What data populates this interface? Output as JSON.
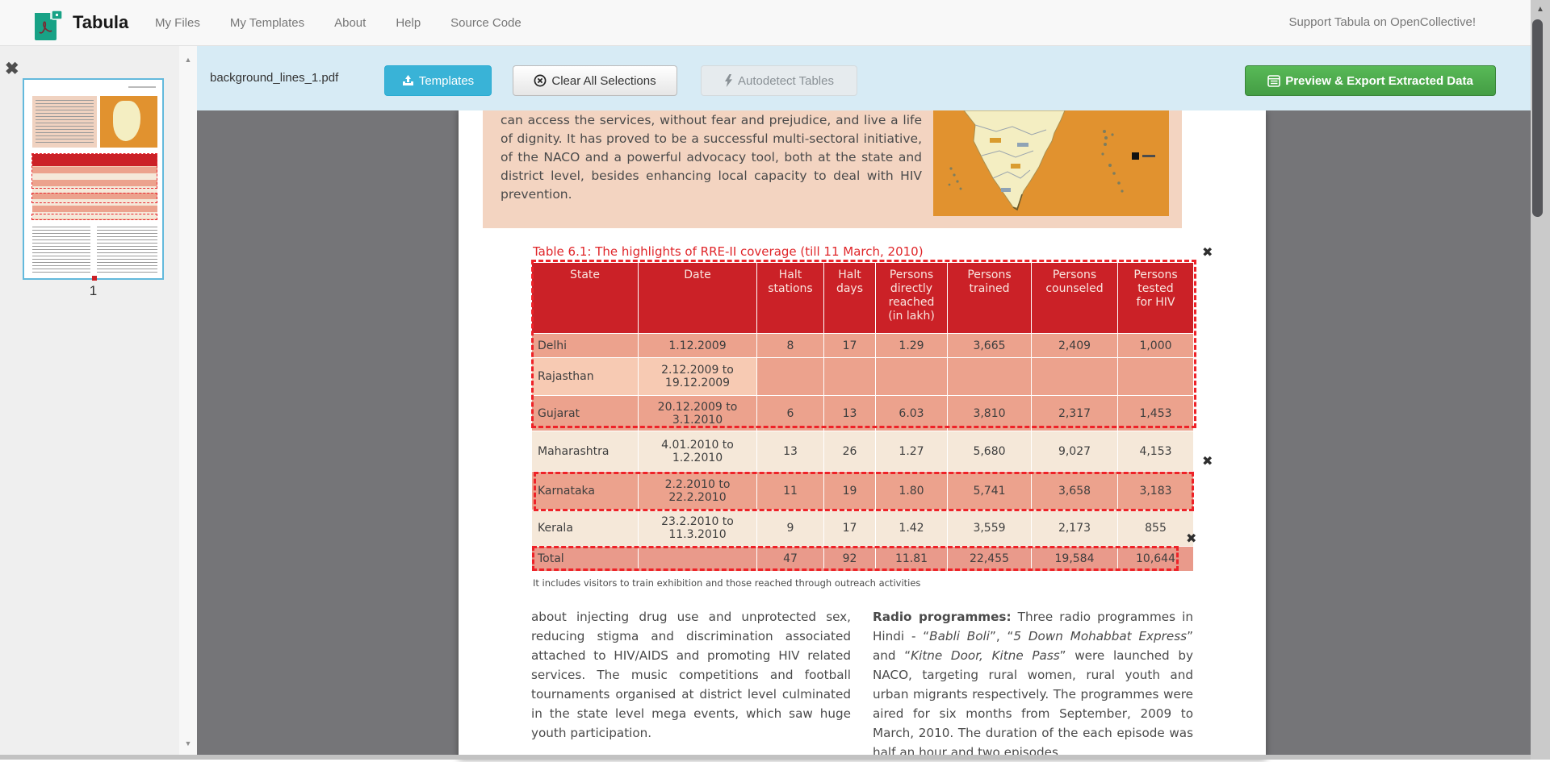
{
  "icons": {
    "close_glyph": "✖",
    "scroll_up": "▲",
    "scroll_down": "▼"
  },
  "navbar": {
    "brand": "Tabula",
    "items": [
      "My Files",
      "My Templates",
      "About",
      "Help",
      "Source Code"
    ],
    "support_link": "Support Tabula on OpenCollective!"
  },
  "toolbar": {
    "filename": "background_lines_1.pdf",
    "templates_label": "Templates",
    "clear_selections_label": "Clear All Selections",
    "autodetect_label": "Autodetect Tables",
    "export_label": "Preview & Export Extracted Data"
  },
  "sidebar": {
    "page_number": "1"
  },
  "document": {
    "intro_paragraph": "can access the services, without fear and prejudice, and live a life of dignity. It has proved to be a successful multi-sectoral initiative, of the NACO and a powerful advocacy tool, both at the state and district level, besides enhancing local capacity to deal with HIV prevention.",
    "table_title": "Table 6.1: The highlights of RRE-II coverage (till 11 March, 2010)",
    "table": {
      "headers": [
        "State",
        "Date",
        "Halt\nstations",
        "Halt\ndays",
        "Persons\ndirectly\nreached\n(in lakh)",
        "Persons\ntrained",
        "Persons\ncounseled",
        "Persons\ntested\nfor HIV"
      ],
      "rows": [
        {
          "style": "selected",
          "cells": [
            "Delhi",
            "1.12.2009",
            "8",
            "17",
            "1.29",
            "3,665",
            "2,409",
            "1,000"
          ]
        },
        {
          "style": "selected-light",
          "cells": [
            "Rajasthan",
            "2.12.2009 to\n19.12.2009",
            "",
            "",
            "",
            "",
            "",
            ""
          ]
        },
        {
          "style": "selected",
          "cells": [
            "Gujarat",
            "20.12.2009 to\n3.1.2010",
            "6",
            "13",
            "6.03",
            "3,810",
            "2,317",
            "1,453"
          ]
        },
        {
          "style": "plain",
          "cells": [
            "Maharashtra",
            "4.01.2010 to\n1.2.2010",
            "13",
            "26",
            "1.27",
            "5,680",
            "9,027",
            "4,153"
          ]
        },
        {
          "style": "selected",
          "cells": [
            "Karnataka",
            "2.2.2010 to\n22.2.2010",
            "11",
            "19",
            "1.80",
            "5,741",
            "3,658",
            "3,183"
          ]
        },
        {
          "style": "plain",
          "cells": [
            "Kerala",
            "23.2.2010 to\n11.3.2010",
            "9",
            "17",
            "1.42",
            "3,559",
            "2,173",
            "855"
          ]
        },
        {
          "style": "total",
          "cells": [
            "Total",
            "",
            "47",
            "92",
            "11.81",
            "22,455",
            "19,584",
            "10,644"
          ]
        }
      ]
    },
    "footnote": "It includes visitors to train exhibition and those reached through outreach activities",
    "left_column": "about injecting drug use and unprotected sex, reducing stigma and discrimination associated attached to HIV/AIDS and promoting HIV related services. The music competitions and football tournaments organised at district level culminated in the state level mega events, which saw huge youth participation.",
    "right_column": {
      "lead": "Radio programmes:",
      "t1": " Three radio programmes in Hindi - “",
      "i1": "Babli Boli",
      "t2": "”, “",
      "i2": "5 Down Mohabbat Express",
      "t3": "” and “",
      "i3": "Kitne Door, Kitne Pass",
      "t4": "” were launched by NACO, targeting rural women, rural youth and urban migrants respectively. The programmes were aired for six months from September, 2009 to March, 2010. The duration of the each episode was half an hour and two episodes"
    }
  }
}
